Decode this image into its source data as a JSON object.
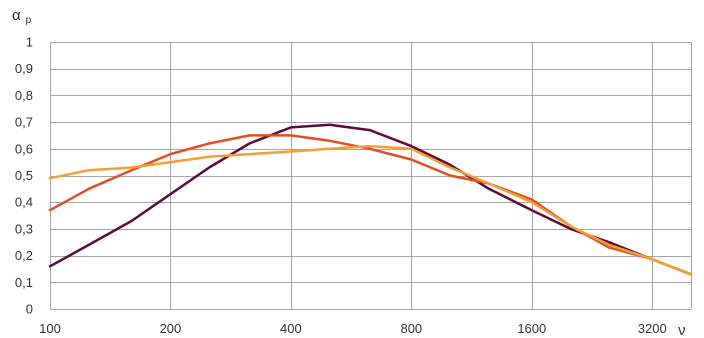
{
  "chart_data": {
    "type": "line",
    "ylabel": "α",
    "ylabel_subscript": "p",
    "xlabel": "ν",
    "xscale": "log2",
    "xlim": [
      100,
      4000
    ],
    "ylim": [
      0,
      1
    ],
    "grid": "both",
    "x_ticks": [
      {
        "value": 100,
        "label": "100"
      },
      {
        "value": 200,
        "label": "200"
      },
      {
        "value": 400,
        "label": "400"
      },
      {
        "value": 800,
        "label": "800"
      },
      {
        "value": 1600,
        "label": "1600"
      },
      {
        "value": 3200,
        "label": "3200"
      }
    ],
    "y_ticks": [
      {
        "value": 0,
        "label": "0"
      },
      {
        "value": 0.1,
        "label": "0,1"
      },
      {
        "value": 0.2,
        "label": "0,2"
      },
      {
        "value": 0.3,
        "label": "0,3"
      },
      {
        "value": 0.4,
        "label": "0,4"
      },
      {
        "value": 0.5,
        "label": "0,5"
      },
      {
        "value": 0.6,
        "label": "0,6"
      },
      {
        "value": 0.7,
        "label": "0,7"
      },
      {
        "value": 0.8,
        "label": "0,8"
      },
      {
        "value": 0.9,
        "label": "0,9"
      },
      {
        "value": 1,
        "label": "1"
      }
    ],
    "series": [
      {
        "color": "#5c0b3c",
        "x": [
          100,
          125,
          160,
          200,
          250,
          315,
          400,
          500,
          630,
          800,
          1000,
          1250,
          1600,
          2000,
          2500,
          3150,
          4000
        ],
        "y": [
          0.16,
          0.24,
          0.33,
          0.43,
          0.53,
          0.62,
          0.68,
          0.69,
          0.67,
          0.61,
          0.54,
          0.45,
          0.37,
          0.3,
          0.25,
          0.19,
          0.13
        ]
      },
      {
        "color": "#e04e24",
        "x": [
          100,
          125,
          160,
          200,
          250,
          315,
          400,
          500,
          630,
          800,
          1000,
          1250,
          1600,
          2000,
          2500,
          3150,
          4000
        ],
        "y": [
          0.37,
          0.45,
          0.52,
          0.58,
          0.62,
          0.65,
          0.65,
          0.63,
          0.6,
          0.56,
          0.5,
          0.47,
          0.41,
          0.31,
          0.23,
          0.19,
          0.13
        ]
      },
      {
        "color": "#f2a033",
        "x": [
          100,
          125,
          160,
          200,
          250,
          315,
          400,
          500,
          630,
          800,
          1000,
          1250,
          1600,
          2000,
          2500,
          3150,
          4000
        ],
        "y": [
          0.49,
          0.52,
          0.53,
          0.55,
          0.57,
          0.58,
          0.59,
          0.6,
          0.61,
          0.6,
          0.53,
          0.47,
          0.4,
          0.31,
          0.24,
          0.19,
          0.13
        ]
      }
    ]
  }
}
